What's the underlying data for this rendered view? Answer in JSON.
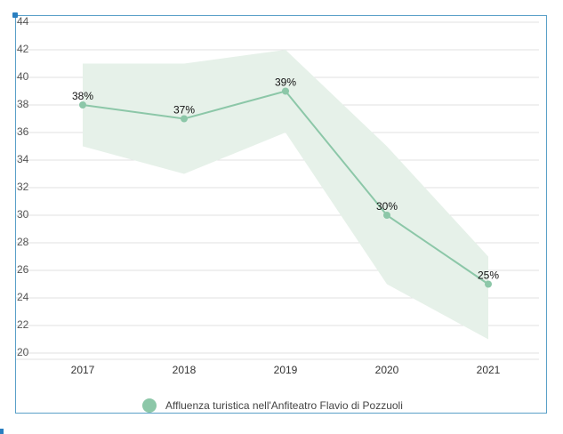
{
  "chart_data": {
    "type": "line",
    "categories": [
      "2017",
      "2018",
      "2019",
      "2020",
      "2021"
    ],
    "series": [
      {
        "name": "Affluenza turistica nell'Anfiteatro Flavio di Pozzuoli",
        "values": [
          38,
          37,
          39,
          30,
          25
        ],
        "labels": [
          "38%",
          "37%",
          "39%",
          "30%",
          "25%"
        ],
        "band_upper": [
          41,
          41,
          42,
          35,
          27
        ],
        "band_lower": [
          35,
          33,
          36,
          25,
          21
        ]
      }
    ],
    "y_ticks": [
      "20",
      "22",
      "24",
      "26",
      "28",
      "30",
      "32",
      "34",
      "36",
      "38",
      "40",
      "42",
      "44"
    ],
    "ylim": [
      20,
      44
    ],
    "grid": true,
    "legend_position": "bottom",
    "colors": {
      "line": "#8cc7a8",
      "band": "#e6f1e9",
      "point": "#8cc7a8"
    }
  }
}
